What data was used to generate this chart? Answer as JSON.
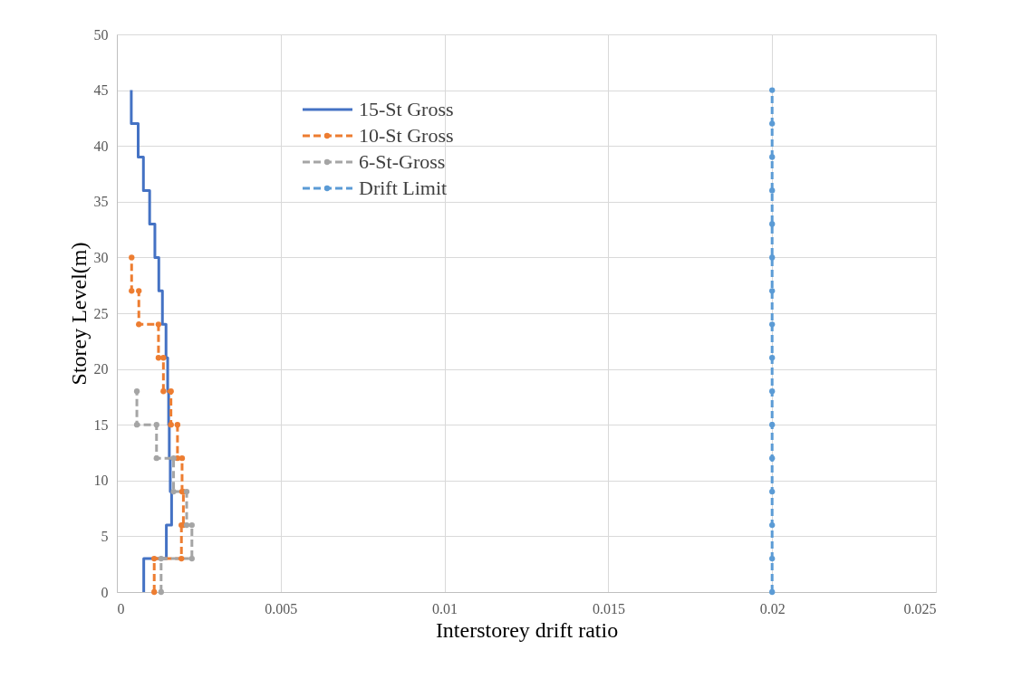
{
  "chart_data": {
    "type": "line",
    "xlabel": "Interstorey drift ratio",
    "ylabel": "Storey Level(m)",
    "xlim": [
      0,
      0.025
    ],
    "xticks": [
      0,
      0.005,
      0.01,
      0.015,
      0.02,
      0.025
    ],
    "ylim": [
      0,
      50
    ],
    "yticks": [
      0,
      5,
      10,
      15,
      20,
      25,
      30,
      35,
      40,
      45,
      50
    ],
    "grid": true,
    "legend": "top left",
    "series": [
      {
        "name": "15-St Gross",
        "color": "#4472c4",
        "line_style": "solid",
        "marker": "none",
        "x": [
          0.00082,
          0.00082,
          0.00151,
          0.00151,
          0.00167,
          0.00167,
          0.00163,
          0.00163,
          0.0016,
          0.0016,
          0.00158,
          0.00158,
          0.00155,
          0.00155,
          0.0015,
          0.0015,
          0.00139,
          0.00139,
          0.00128,
          0.00128,
          0.00116,
          0.00116,
          0.001,
          0.001,
          0.00081,
          0.00081,
          0.00065,
          0.00065,
          0.00044,
          0.00044
        ],
        "values": [
          0,
          3,
          3,
          6,
          6,
          9,
          9,
          12,
          12,
          15,
          15,
          18,
          18,
          21,
          21,
          24,
          24,
          27,
          27,
          30,
          30,
          33,
          33,
          36,
          36,
          39,
          39,
          42,
          42,
          45
        ]
      },
      {
        "name": "10-St Gross",
        "color": "#ed7d31",
        "line_style": "dashed",
        "marker": "circle",
        "x": [
          0.00114,
          0.00114,
          0.00197,
          0.00197,
          0.00203,
          0.00203,
          0.00199,
          0.00199,
          0.00185,
          0.00185,
          0.00165,
          0.00165,
          0.00142,
          0.00142,
          0.00127,
          0.00127,
          0.00067,
          0.00067,
          0.00045,
          0.00045
        ],
        "values": [
          0,
          3,
          3,
          6,
          6,
          9,
          9,
          12,
          12,
          15,
          15,
          18,
          18,
          21,
          21,
          24,
          24,
          27,
          27,
          30
        ]
      },
      {
        "name": "6-St-Gross",
        "color": "#a5a5a5",
        "line_style": "dashed",
        "marker": "circle",
        "x": [
          0.00135,
          0.00135,
          0.00229,
          0.00229,
          0.00213,
          0.00213,
          0.00173,
          0.00173,
          0.00121,
          0.00121,
          0.00061,
          0.00061
        ],
        "values": [
          0,
          3,
          3,
          6,
          6,
          9,
          9,
          12,
          12,
          15,
          15,
          18
        ]
      },
      {
        "name": "Drift Limit",
        "color": "#5b9bd5",
        "line_style": "dashed",
        "marker": "circle",
        "x": [
          0.02,
          0.02,
          0.02,
          0.02,
          0.02,
          0.02,
          0.02,
          0.02,
          0.02,
          0.02,
          0.02,
          0.02,
          0.02,
          0.02,
          0.02,
          0.02
        ],
        "values": [
          0,
          3,
          6,
          9,
          12,
          15,
          18,
          21,
          24,
          27,
          30,
          33,
          36,
          39,
          42,
          45
        ]
      }
    ]
  }
}
